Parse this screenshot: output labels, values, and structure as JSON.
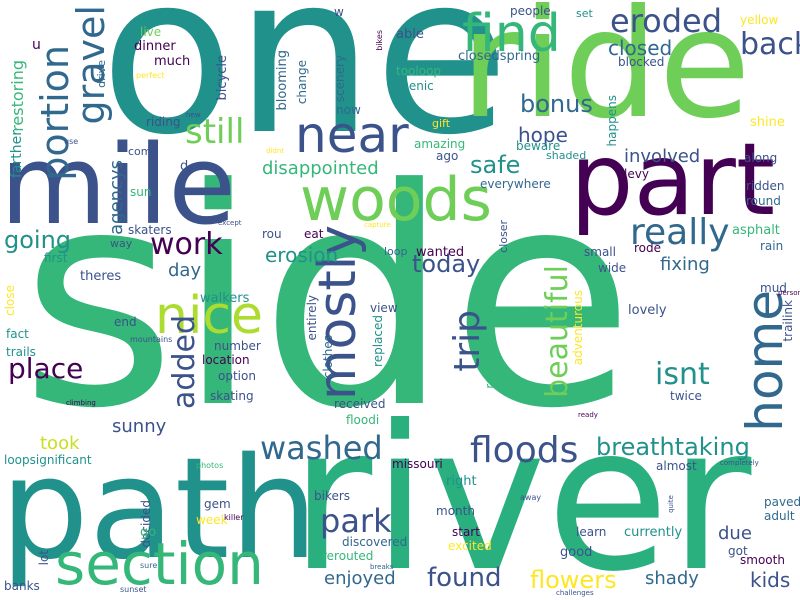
{
  "colors": {
    "background": "#ffffff",
    "purple": "#440154",
    "navy": "#3b528b",
    "blue": "#31688e",
    "teal": "#21918c",
    "green": "#35b779",
    "lime": "#6ece58",
    "yellow": "#fde725"
  },
  "words": {
    "side": "side",
    "one": "one",
    "river": "river",
    "path": "path",
    "ride": "ride",
    "mile": "mile",
    "part": "part",
    "woods": "woods",
    "section": "section",
    "near": "near",
    "find": "find",
    "home": "home",
    "nice": "nice",
    "mostly": "mostly",
    "portion": "portion",
    "gravel": "gravel",
    "eroded": "eroded",
    "back": "back",
    "floods": "floods",
    "washed": "washed",
    "park": "park",
    "really": "really",
    "trip": "trip",
    "beautiful": "beautiful",
    "breathtaking": "breathtaking",
    "still": "still",
    "work": "work",
    "added": "added",
    "place": "place",
    "isnt": "isnt",
    "safe": "safe",
    "bonus": "bonus",
    "going": "going",
    "today": "today",
    "found": "found",
    "flowers": "flowers",
    "closed": "closed",
    "disappointed": "disappointed",
    "erosion": "erosion",
    "involved": "involved",
    "fixing": "fixing",
    "enjoyed": "enjoyed",
    "kids": "kids",
    "hope": "hope",
    "agencys": "agencys",
    "day": "day",
    "sunny": "sunny",
    "took": "took",
    "shady": "shady",
    "due": "due",
    "restoring": "restoring",
    "farther": "farther",
    "u": "u",
    "live": "live",
    "dinner": "dinner",
    "much": "much",
    "perfect": "perfect",
    "bicycle": "bicycle",
    "drive": "drive",
    "blooming": "blooming",
    "change": "change",
    "w": "w",
    "scenery": "scenery",
    "bikes": "bikes",
    "able": "able",
    "people": "people",
    "set": "set",
    "yellow": "yellow",
    "closedspring": "closedspring",
    "blocked": "blocked",
    "tooloop": "tooloop",
    "scenic": "scenic",
    "now": "now",
    "gift": "gift",
    "amazing": "amazing",
    "ago": "ago",
    "beware": "beware",
    "happens": "happens",
    "shine": "shine",
    "riding": "riding",
    "new": "new",
    "use": "use",
    "come": "come",
    "d": "d",
    "didnt": "didnt",
    "shaded": "shaded",
    "along": "along",
    "levy": "levy",
    "ridden": "ridden",
    "round": "round",
    "everywhere": "everywhere",
    "sun": "sun",
    "skaters": "skaters",
    "way": "way",
    "except": "except",
    "capture": "capture",
    "rou": "rou",
    "eat": "eat",
    "closer": "closer",
    "asphalt": "asphalt",
    "rain": "rain",
    "first": "first",
    "loop": "loop",
    "wanted": "wanted",
    "small": "small",
    "rode": "rode",
    "wide": "wide",
    "theres": "theres",
    "walkers": "walkers",
    "view": "view",
    "adventurous": "adventurous",
    "mud": "mud",
    "person": "person",
    "lovely": "lovely",
    "trailink": "trailink",
    "close": "close",
    "end": "end",
    "entirely": "entirely",
    "fact": "fact",
    "mountains": "mountains",
    "number": "number",
    "location": "location",
    "clothes": "clothes",
    "replaced": "replaced",
    "recently": "recently",
    "trails": "trails",
    "option": "option",
    "create": "create",
    "climbing": "climbing",
    "skating": "skating",
    "received": "received",
    "twice": "twice",
    "floodi": "floodi",
    "ready": "ready",
    "loopsignificant": "loopsignificant",
    "missouri": "missouri",
    "almost": "almost",
    "completely": "completely",
    "photos": "photos",
    "right": "right",
    "gem": "gem",
    "week": "week",
    "decided": "decided",
    "bikers": "bikers",
    "month": "month",
    "away": "away",
    "go": "go",
    "quite": "quite",
    "paved": "paved",
    "adult": "adult",
    "start": "start",
    "learn": "learn",
    "got": "got",
    "smooth": "smooth",
    "currently": "currently",
    "killer": "killer",
    "discovered": "discovered",
    "rerouted": "rerouted",
    "excited": "excited",
    "good": "good",
    "breaks": "breaks",
    "lot": "lot",
    "sure": "sure",
    "challenges": "challenges",
    "banks": "banks",
    "sunset": "sunset"
  }
}
